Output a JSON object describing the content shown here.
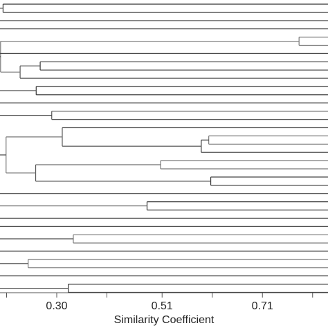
{
  "chart_data": {
    "type": "dendrogram",
    "title": "",
    "xlabel": "Similarity Coefficient",
    "ylabel": "",
    "xlim": [
      0.18,
      0.86
    ],
    "x_ticks": [
      0.2,
      0.3,
      0.4,
      0.51,
      0.61,
      0.71,
      0.81
    ],
    "x_tick_labels": [
      "0.30",
      "0.51",
      "0.71"
    ],
    "x_tick_label_values": [
      0.3,
      0.51,
      0.71
    ],
    "leaves": 34,
    "merges": [
      {
        "id": "c1",
        "x": 0.193,
        "children": [
          "L0",
          "L1"
        ]
      },
      {
        "id": "c2",
        "x": 0.185,
        "children": [
          "c1",
          "L2"
        ]
      },
      {
        "id": "c3",
        "x": 0.783,
        "children": [
          "L4",
          "L5"
        ]
      },
      {
        "id": "c4",
        "x": 0.267,
        "children": [
          "L7",
          "L8"
        ]
      },
      {
        "id": "c5",
        "x": 0.227,
        "children": [
          "c4",
          "L9"
        ]
      },
      {
        "id": "c6",
        "x": 0.188,
        "children": [
          "c3",
          "c5"
        ]
      },
      {
        "id": "c7",
        "x": 0.259,
        "children": [
          "L10",
          "L11"
        ]
      },
      {
        "id": "c8",
        "x": 0.29,
        "children": [
          "L13",
          "L14"
        ]
      },
      {
        "id": "c9",
        "x": 0.603,
        "children": [
          "L16",
          "L17"
        ]
      },
      {
        "id": "c10",
        "x": 0.588,
        "children": [
          "c9",
          "L18"
        ]
      },
      {
        "id": "c11",
        "x": 0.311,
        "children": [
          "L15",
          "c10"
        ]
      },
      {
        "id": "c12",
        "x": 0.507,
        "children": [
          "L19",
          "L20"
        ]
      },
      {
        "id": "c13",
        "x": 0.607,
        "children": [
          "L21",
          "L22"
        ]
      },
      {
        "id": "c14",
        "x": 0.258,
        "children": [
          "c12",
          "c13"
        ]
      },
      {
        "id": "c15",
        "x": 0.199,
        "children": [
          "c11",
          "c14"
        ]
      },
      {
        "id": "c16",
        "x": 0.48,
        "children": [
          "L24",
          "L25"
        ]
      },
      {
        "id": "c17",
        "x": 0.183,
        "children": [
          "c16",
          "L26"
        ]
      },
      {
        "id": "c18",
        "x": 0.333,
        "children": [
          "L28",
          "L29"
        ]
      },
      {
        "id": "c19",
        "x": 0.184,
        "children": [
          "L27",
          "c18"
        ]
      },
      {
        "id": "c20",
        "x": 0.18,
        "children": [
          "c19",
          "L30"
        ]
      },
      {
        "id": "c21",
        "x": 0.243,
        "children": [
          "L31",
          "L32"
        ]
      },
      {
        "id": "c22",
        "x": 0.323,
        "children": [
          "L34",
          "L35"
        ]
      }
    ],
    "grid": false,
    "legend": "none"
  }
}
